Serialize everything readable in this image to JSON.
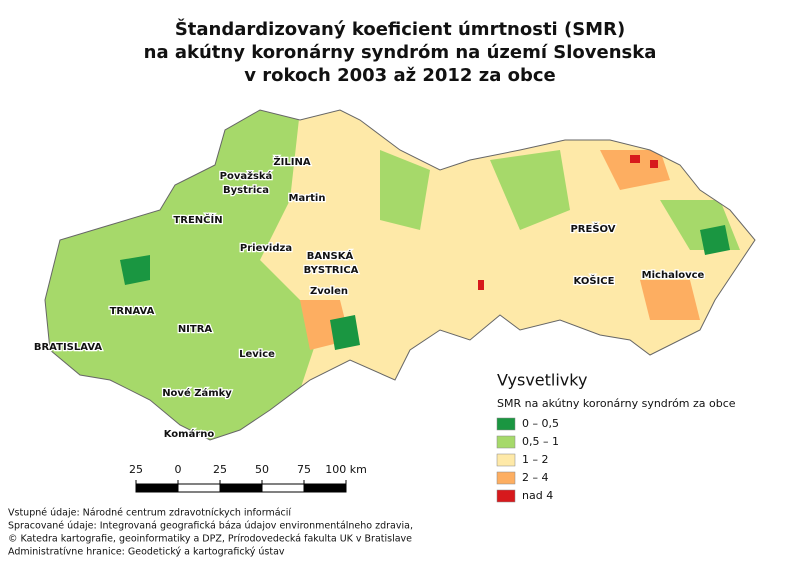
{
  "title": [
    "Štandardizovaný koeficient úmrtnosti (SMR)",
    "na akútny koronárny syndróm na území Slovenska",
    "v rokoch 2003 až 2012 za obce"
  ],
  "cities": [
    "ŽILINA",
    "Považská",
    "Bystrica",
    "Martin",
    "TRENČÍN",
    "Prievidza",
    "BANSKÁ",
    "BYSTRICA",
    "Zvolen",
    "PREŠOV",
    "KOŠICE",
    "Michalovce",
    "TRNAVA",
    "NITRA",
    "BRATISLAVA",
    "Levice",
    "Nové Zámky",
    "Komárno"
  ],
  "legend": {
    "title": "Vysvetlivky",
    "subtitle": "SMR na akútny koronárny syndróm za obce",
    "items": [
      {
        "label": "0 – 0,5",
        "color": "#1a9641"
      },
      {
        "label": "0,5 – 1",
        "color": "#a6d96a"
      },
      {
        "label": "1 – 2",
        "color": "#fee9a8"
      },
      {
        "label": "2 – 4",
        "color": "#fdae61"
      },
      {
        "label": "nad 4",
        "color": "#d7191c"
      }
    ]
  },
  "scale_bar": {
    "ticks": [
      {
        "value": -25,
        "label": "25"
      },
      0,
      25,
      50,
      75,
      {
        "value": 100,
        "label": "100 km"
      }
    ]
  },
  "sources": [
    "Vstupné údaje: Národné centrum zdravotníckych informácií",
    "Spracované údaje: Integrovaná geografická báza údajov environmentálneho zdravia,",
    "© Katedra kartografie, geoinformatiky a DPZ, Prírodovedecká fakulta UK v Bratislave",
    "Administratívne hranice: Geodetický a kartografický ústav"
  ]
}
